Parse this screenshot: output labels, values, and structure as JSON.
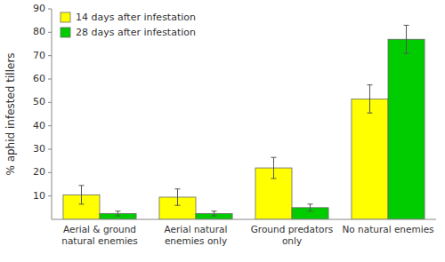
{
  "chart_data": {
    "type": "bar",
    "categories": [
      "Aerial & ground\nnatural enemies",
      "Aerial natural\nenemies only",
      "Ground predators\nonly",
      "No natural enemies"
    ],
    "series": [
      {
        "name": "14 days after infestation",
        "color": "#FFFF00",
        "values": [
          10.5,
          9.5,
          22.0,
          51.5
        ],
        "errors": [
          4.0,
          3.5,
          4.5,
          6.0
        ]
      },
      {
        "name": "28 days after infestation",
        "color": "#00CC00",
        "values": [
          2.5,
          2.5,
          5.0,
          77.0
        ],
        "errors": [
          1.0,
          1.0,
          1.5,
          6.0
        ]
      }
    ],
    "ylabel": "% aphid infested tillers",
    "ylim": [
      0,
      90
    ],
    "yticks": [
      10,
      20,
      30,
      40,
      50,
      60,
      70,
      80,
      90
    ],
    "legend": "upper left",
    "grid": false
  }
}
